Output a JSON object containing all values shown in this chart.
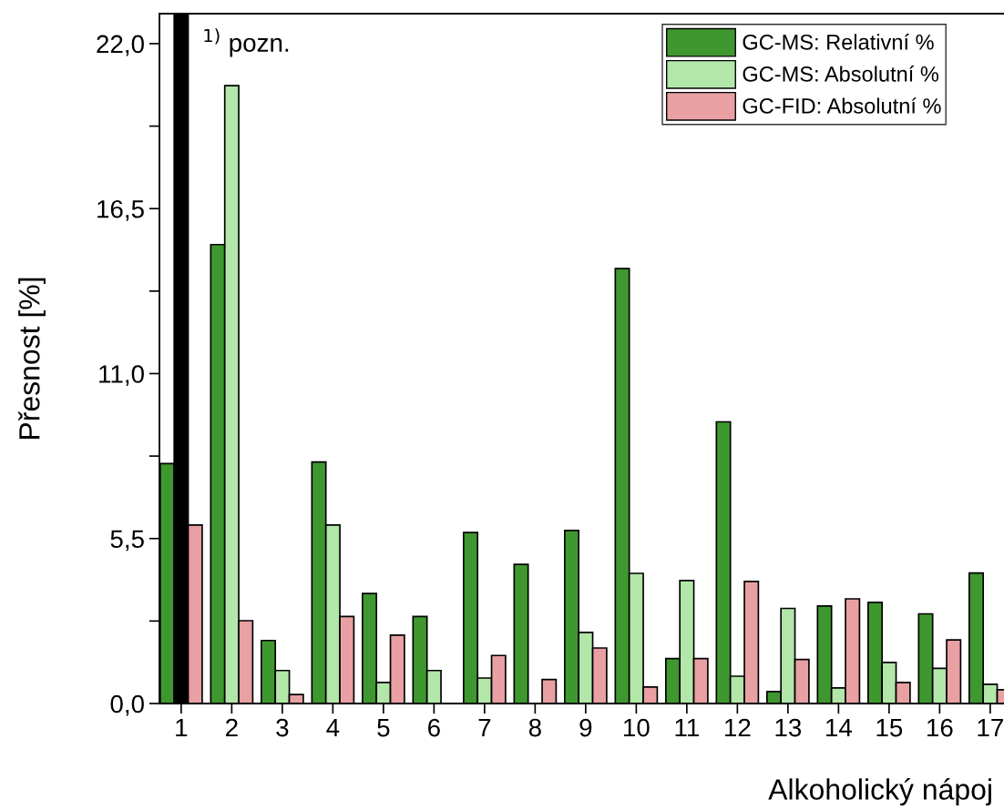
{
  "chart_data": {
    "type": "bar",
    "xlabel": "Alkoholický nápoj",
    "ylabel": "Přesnost [%]",
    "categories": [
      "1",
      "2",
      "3",
      "4",
      "5",
      "6",
      "7",
      "8",
      "9",
      "10",
      "11",
      "12",
      "13",
      "14",
      "15",
      "16",
      "17"
    ],
    "series": [
      {
        "name": "GC-MS: Relativní %",
        "color": "#3f982f",
        "values": [
          8.0,
          15.3,
          2.1,
          8.05,
          3.67,
          2.9,
          5.7,
          4.64,
          5.77,
          14.5,
          1.5,
          9.39,
          0.4,
          3.25,
          3.37,
          2.99,
          4.35
        ]
      },
      {
        "name": "GC-MS: Absolutní %",
        "color": "#b3e6a9",
        "colors": [
          "#000000",
          "#b3e6a9",
          "#b3e6a9",
          "#b3e6a9",
          "#b3e6a9",
          "#b3e6a9",
          "#b3e6a9",
          "#b3e6a9",
          "#b3e6a9",
          "#b3e6a9",
          "#b3e6a9",
          "#b3e6a9",
          "#b3e6a9",
          "#b3e6a9",
          "#b3e6a9",
          "#b3e6a9",
          "#b3e6a9"
        ],
        "values": [
          23,
          20.6,
          1.1,
          5.95,
          0.7,
          1.1,
          0.85,
          null,
          2.37,
          4.34,
          4.1,
          0.91,
          3.17,
          0.52,
          1.37,
          1.17,
          0.64
        ]
      },
      {
        "name": "GC-FID: Absolutní %",
        "color": "#e8a0a3",
        "values": [
          5.95,
          2.76,
          0.3,
          2.9,
          2.28,
          null,
          1.6,
          0.8,
          1.85,
          0.55,
          1.5,
          4.07,
          1.47,
          3.49,
          0.7,
          2.12,
          0.46
        ]
      }
    ],
    "ylim": [
      0,
      23
    ],
    "yticks": [
      {
        "value": 0,
        "label": "0,0"
      },
      {
        "value": 2.75,
        "label": null
      },
      {
        "value": 5.5,
        "label": "5,5"
      },
      {
        "value": 8.25,
        "label": null
      },
      {
        "value": 11,
        "label": "11,0"
      },
      {
        "value": 13.75,
        "label": null
      },
      {
        "value": 16.5,
        "label": "16,5"
      },
      {
        "value": 19.25,
        "label": null
      },
      {
        "value": 22,
        "label": "22,0"
      }
    ],
    "annotations": [
      "$^{1)}$ pozn."
    ],
    "legend": "top right",
    "grid": false
  }
}
